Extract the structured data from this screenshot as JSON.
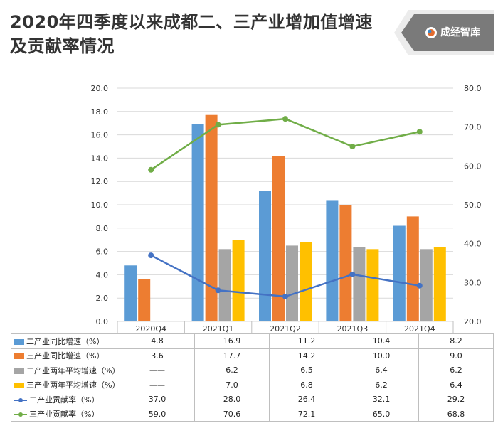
{
  "title": "2020年四季度以来成都二、三产业增加值增速及贡献率情况",
  "logo": {
    "text": "成经智库",
    "accent": "#7a7a7a"
  },
  "colors": {
    "s1": "#5b9bd5",
    "s2": "#ed7d31",
    "s3": "#a5a5a5",
    "s4": "#ffc000",
    "l1": "#4472c4",
    "l2": "#70ad47"
  },
  "chart_data": {
    "type": "bar",
    "categories": [
      "2020Q4",
      "2021Q1",
      "2021Q2",
      "2021Q3",
      "2021Q4"
    ],
    "ylim": [
      0,
      20
    ],
    "y_ticks": [
      "0.0",
      "2.0",
      "4.0",
      "6.0",
      "8.0",
      "10.0",
      "12.0",
      "14.0",
      "16.0",
      "18.0",
      "20.0"
    ],
    "y2lim": [
      20,
      80
    ],
    "y2_ticks": [
      "20.0",
      "30.0",
      "40.0",
      "50.0",
      "60.0",
      "70.0",
      "80.0"
    ],
    "grid": true,
    "series": [
      {
        "name": "二产业同比增速（%）",
        "type": "bar",
        "axis": "left",
        "color": "#5b9bd5",
        "values": [
          4.8,
          16.9,
          11.2,
          10.4,
          8.2
        ],
        "labels": [
          "4.8",
          "16.9",
          "11.2",
          "10.4",
          "8.2"
        ]
      },
      {
        "name": "三产业同比增速（%）",
        "type": "bar",
        "axis": "left",
        "color": "#ed7d31",
        "values": [
          3.6,
          17.7,
          14.2,
          10.0,
          9.0
        ],
        "labels": [
          "3.6",
          "17.7",
          "14.2",
          "10.0",
          "9.0"
        ]
      },
      {
        "name": "二产业两年平均增速（%）",
        "type": "bar",
        "axis": "left",
        "color": "#a5a5a5",
        "values": [
          null,
          6.2,
          6.5,
          6.4,
          6.2
        ],
        "labels": [
          "——",
          "6.2",
          "6.5",
          "6.4",
          "6.2"
        ]
      },
      {
        "name": "三产业两年平均增速（%）",
        "type": "bar",
        "axis": "left",
        "color": "#ffc000",
        "values": [
          null,
          7.0,
          6.8,
          6.2,
          6.4
        ],
        "labels": [
          "——",
          "7.0",
          "6.8",
          "6.2",
          "6.4"
        ]
      },
      {
        "name": "二产业贡献率（%）",
        "type": "line",
        "axis": "right",
        "color": "#4472c4",
        "values": [
          37.0,
          28.0,
          26.4,
          32.1,
          29.2
        ],
        "labels": [
          "37.0",
          "28.0",
          "26.4",
          "32.1",
          "29.2"
        ]
      },
      {
        "name": "三产业贡献率（%）",
        "type": "line",
        "axis": "right",
        "color": "#70ad47",
        "values": [
          59.0,
          70.6,
          72.1,
          65.0,
          68.8
        ],
        "labels": [
          "59.0",
          "70.6",
          "72.1",
          "65.0",
          "68.8"
        ]
      }
    ]
  }
}
